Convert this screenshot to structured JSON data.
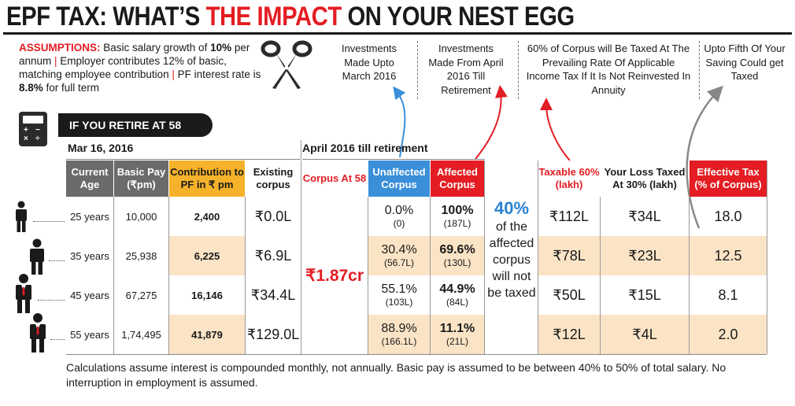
{
  "title": {
    "part1": "EPF TAX: WHAT’S ",
    "part2": "THE IMPACT",
    "part3": " ON YOUR NEST EGG"
  },
  "assumptions": {
    "label": "ASSUMPTIONS:",
    "t1": " Basic salary growth of ",
    "v1": "10%",
    "t2": " per annum ",
    "sep": "|",
    "t3": " Employer contributes 12% of basic, matching employee contribution ",
    "t4": " PF interest rate is ",
    "v2": "8.8%",
    "t5": " for full term"
  },
  "notes": {
    "n1": "Investments Made Upto March 2016",
    "n2": "Investments Made From April 2016 Till Retirement",
    "n3": "60% of Corpus will Be Taxed At The Prevailing Rate Of Applicable Income Tax If It Is Not Reinvested In Annuity",
    "n4": "Upto Fifth Of Your Saving Could get Taxed"
  },
  "retire_label": "IF YOU RETIRE AT 58",
  "period1": "Mar 16, 2016",
  "period2": "April 2016 till retirement",
  "headers": {
    "age": "Current Age",
    "pay": "Basic Pay (₹pm)",
    "contrib": "Contribution to PF in ₹ pm",
    "existing": "Existing corpus",
    "corpus": "Corpus At 58",
    "unaffected": "Unaffected Corpus",
    "affected": "Affected Corpus",
    "taxable": "Taxable 60% (lakh)",
    "loss": "Your Loss Taxed At 30% (lakh)",
    "eff": "Effective Tax (% of Corpus)"
  },
  "corpus_value": "₹1.87cr",
  "note40": {
    "pct": "40%",
    "text": "of the affected corpus will not be taxed"
  },
  "rows": [
    {
      "age": "25 years",
      "pay": "10,000",
      "contrib": "2,400",
      "existing": "₹0.0L",
      "unaff_pct": "0.0%",
      "unaff_amt": "(0)",
      "aff_pct": "100%",
      "aff_amt": "(187L)",
      "taxable": "₹112L",
      "loss": "₹34L",
      "eff": "18.0"
    },
    {
      "age": "35 years",
      "pay": "25,938",
      "contrib": "6,225",
      "existing": "₹6.9L",
      "unaff_pct": "30.4%",
      "unaff_amt": "(56.7L)",
      "aff_pct": "69.6%",
      "aff_amt": "(130L)",
      "taxable": "₹78L",
      "loss": "₹23L",
      "eff": "12.5"
    },
    {
      "age": "45 years",
      "pay": "67,275",
      "contrib": "16,146",
      "existing": "₹34.4L",
      "unaff_pct": "55.1%",
      "unaff_amt": "(103L)",
      "aff_pct": "44.9%",
      "aff_amt": "(84L)",
      "taxable": "₹50L",
      "loss": "₹15L",
      "eff": "8.1"
    },
    {
      "age": "55 years",
      "pay": "1,74,495",
      "contrib": "41,879",
      "existing": "₹129.0L",
      "unaff_pct": "88.9%",
      "unaff_amt": "(166.1L)",
      "aff_pct": "11.1%",
      "aff_amt": "(21L)",
      "taxable": "₹12L",
      "loss": "₹4L",
      "eff": "2.0"
    }
  ],
  "footer": "Calculations assume interest is compounded monthly, not annually. Basic pay is assumed to be between 40% to 50% of total salary. No interruption in employment is assumed.",
  "colors": {
    "red": "#e31d23",
    "blue": "#3a8fd8",
    "gold": "#f5b22a",
    "tint": "#fbe4c6",
    "grey": "#6b6b6b"
  }
}
